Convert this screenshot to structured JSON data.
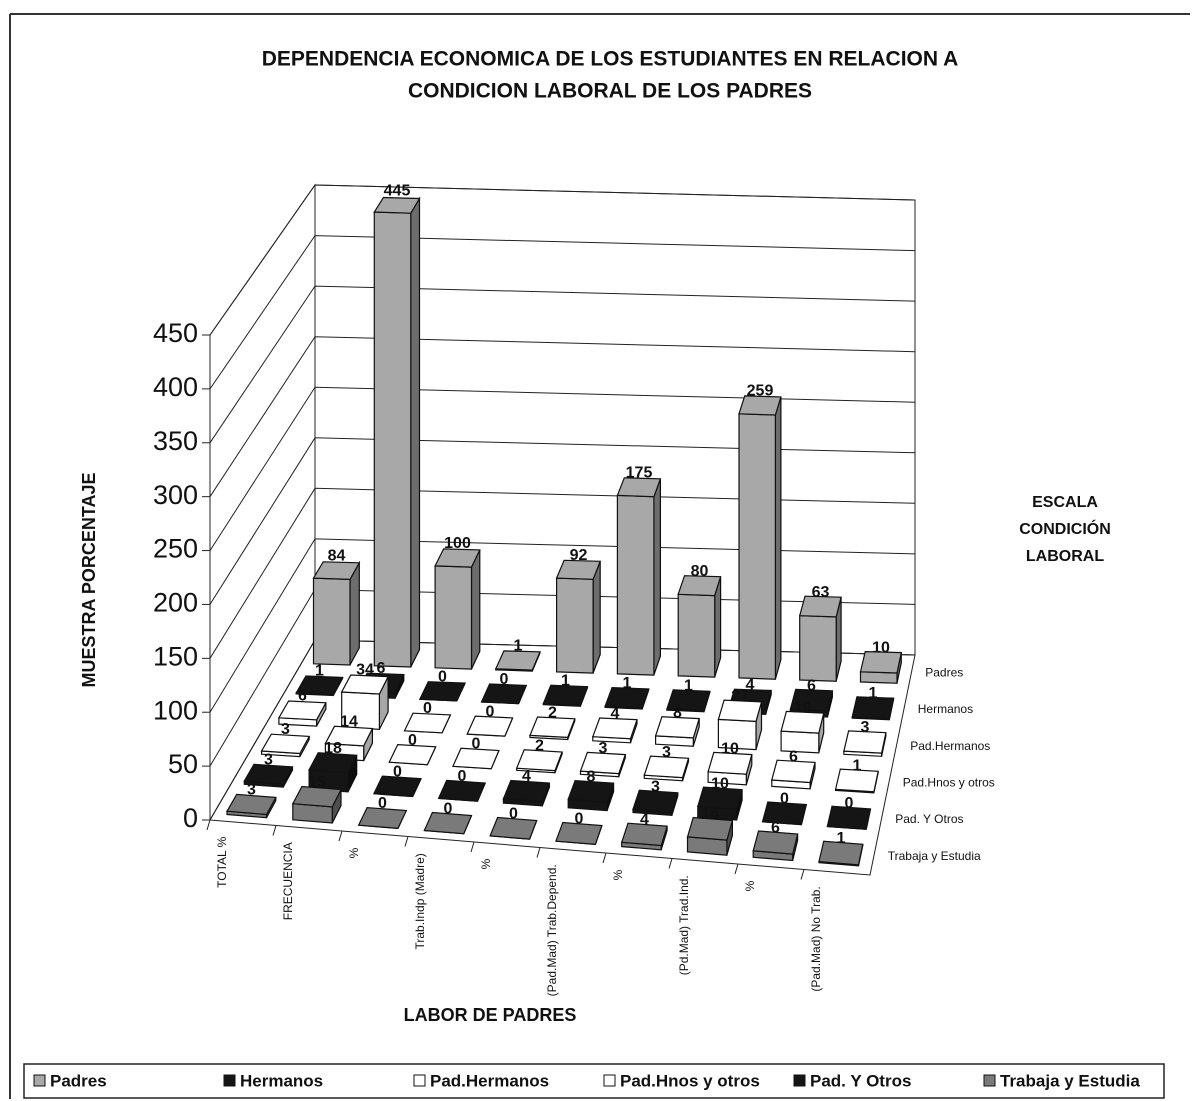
{
  "chart_data": {
    "type": "bar3d",
    "title": [
      "DEPENDENCIA ECONOMICA DE LOS ESTUDIANTES EN RELACION A",
      "CONDICION LABORAL DE LOS PADRES"
    ],
    "y_label": "MUESTRA PORCENTAJE",
    "x_label": "LABOR DE PADRES",
    "z_label": [
      "ESCALA",
      "CONDICIÓN",
      "LABORAL"
    ],
    "categories": [
      "TOTAL %",
      "FRECUENCIA",
      "%",
      "Trab.Indp (Madre)",
      "%",
      "(Pad.Mad) Trab.Depend.",
      "%",
      "(Pd.Mad) Trad.Ind.",
      "%",
      "(Pad.Mad) No Trab."
    ],
    "series": [
      {
        "name": "Padres",
        "color": "#a8a8a8",
        "values": [
          84,
          445,
          100,
          1,
          92,
          175,
          80,
          259,
          63,
          10
        ]
      },
      {
        "name": "Hermanos",
        "color": "#151515",
        "values": [
          1,
          6,
          0,
          0,
          1,
          1,
          1,
          4,
          6,
          1
        ]
      },
      {
        "name": "Pad.Hermanos",
        "color": "#ffffff",
        "values": [
          6,
          34,
          0,
          0,
          2,
          4,
          8,
          27,
          19,
          3
        ]
      },
      {
        "name": "Pad.Hnos y otros",
        "color": "#ffffff",
        "values": [
          3,
          14,
          0,
          0,
          2,
          3,
          3,
          10,
          6,
          1
        ]
      },
      {
        "name": "Pad. Y Otros",
        "color": "#151515",
        "values": [
          3,
          18,
          0,
          0,
          4,
          8,
          3,
          10,
          0,
          0
        ]
      },
      {
        "name": "Trabaja y Estudia",
        "color": "#7a7a7a",
        "values": [
          3,
          15,
          0,
          0,
          0,
          0,
          4,
          14,
          6,
          1
        ]
      }
    ],
    "ylim": [
      0,
      450
    ],
    "yticks": [
      0,
      50,
      100,
      150,
      200,
      250,
      300,
      350,
      400,
      450
    ],
    "grid": true
  }
}
